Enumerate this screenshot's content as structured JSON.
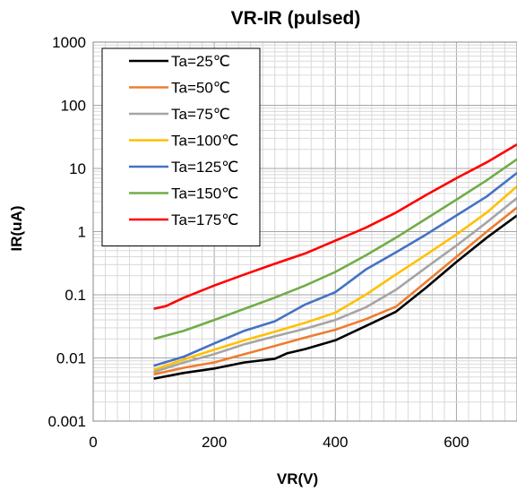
{
  "chart_data": {
    "type": "line",
    "title": "VR-IR (pulsed)",
    "xlabel": "VR(V)",
    "ylabel": "IR(uA)",
    "xlim": [
      0,
      700
    ],
    "ylim": [
      0.001,
      1000
    ],
    "y_scale": "log",
    "x_ticks": [
      0,
      200,
      400,
      600
    ],
    "y_ticks": [
      {
        "value": 0.001,
        "label": "0.001"
      },
      {
        "value": 0.01,
        "label": "0.01"
      },
      {
        "value": 0.1,
        "label": "0.1"
      },
      {
        "value": 1,
        "label": "1"
      },
      {
        "value": 10,
        "label": "10"
      },
      {
        "value": 100,
        "label": "100"
      },
      {
        "value": 1000,
        "label": "1000"
      }
    ],
    "grid": true,
    "legend_position": "top-left",
    "series": [
      {
        "name": "Ta=25℃",
        "color": "#000000",
        "x": [
          100,
          150,
          200,
          250,
          300,
          320,
          350,
          400,
          450,
          500,
          550,
          600,
          650,
          700
        ],
        "y": [
          0.0047,
          0.0058,
          0.0068,
          0.0085,
          0.0097,
          0.0118,
          0.0138,
          0.019,
          0.032,
          0.054,
          0.13,
          0.33,
          0.8,
          1.8
        ]
      },
      {
        "name": "Ta=50℃",
        "color": "#ED7D31",
        "x": [
          100,
          150,
          200,
          250,
          300,
          350,
          400,
          450,
          500,
          550,
          600,
          650,
          700
        ],
        "y": [
          0.0055,
          0.007,
          0.0085,
          0.0115,
          0.0155,
          0.021,
          0.028,
          0.041,
          0.065,
          0.16,
          0.4,
          1.0,
          2.4
        ]
      },
      {
        "name": "Ta=75℃",
        "color": "#A5A5A5",
        "x": [
          100,
          150,
          200,
          250,
          300,
          350,
          400,
          450,
          500,
          550,
          600,
          650,
          700
        ],
        "y": [
          0.006,
          0.0085,
          0.0115,
          0.0165,
          0.022,
          0.029,
          0.04,
          0.063,
          0.12,
          0.27,
          0.6,
          1.4,
          3.4
        ]
      },
      {
        "name": "Ta=100℃",
        "color": "#FFC000",
        "x": [
          100,
          150,
          200,
          250,
          300,
          350,
          400,
          450,
          500,
          550,
          600,
          650,
          700
        ],
        "y": [
          0.0065,
          0.0095,
          0.0135,
          0.019,
          0.026,
          0.036,
          0.052,
          0.1,
          0.21,
          0.43,
          0.9,
          2.0,
          5.2
        ]
      },
      {
        "name": "Ta=125℃",
        "color": "#4472C4",
        "x": [
          100,
          150,
          200,
          250,
          300,
          350,
          400,
          450,
          500,
          550,
          600,
          650,
          700
        ],
        "y": [
          0.0075,
          0.0105,
          0.017,
          0.027,
          0.038,
          0.07,
          0.11,
          0.25,
          0.47,
          0.9,
          1.8,
          3.6,
          8.5
        ]
      },
      {
        "name": "Ta=150℃",
        "color": "#70AD47",
        "x": [
          100,
          150,
          200,
          250,
          300,
          350,
          400,
          450,
          500,
          550,
          600,
          650,
          700
        ],
        "y": [
          0.02,
          0.027,
          0.04,
          0.06,
          0.09,
          0.14,
          0.23,
          0.42,
          0.8,
          1.6,
          3.2,
          6.5,
          14
        ]
      },
      {
        "name": "Ta=175℃",
        "color": "#FF0000",
        "x": [
          100,
          120,
          150,
          200,
          250,
          300,
          350,
          400,
          450,
          500,
          550,
          600,
          650,
          700
        ],
        "y": [
          0.06,
          0.066,
          0.09,
          0.14,
          0.21,
          0.31,
          0.45,
          0.72,
          1.15,
          2.0,
          3.8,
          7.0,
          12.5,
          24
        ]
      }
    ]
  }
}
